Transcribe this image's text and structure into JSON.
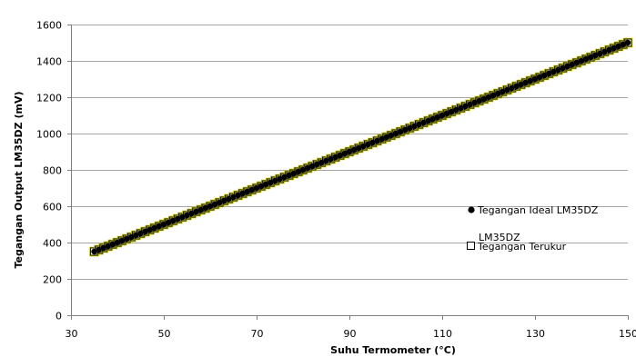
{
  "chart_data": {
    "type": "scatter",
    "title": "",
    "xlabel": "Suhu Termometer (°C)",
    "ylabel": "Tegangan Output LM35DZ (mV)",
    "xlim": [
      30,
      150
    ],
    "ylim": [
      0,
      1600
    ],
    "xticks": [
      30,
      50,
      70,
      90,
      110,
      130,
      150
    ],
    "yticks": [
      0,
      200,
      400,
      600,
      800,
      1000,
      1200,
      1400,
      1600
    ],
    "grid": "horizontal",
    "legend_position": "right",
    "series": [
      {
        "name": "Tegangan Ideal LM35DZ",
        "marker": "filled-circle",
        "color": "#000000",
        "x_range": [
          35,
          150
        ],
        "x_step": 1,
        "slope": 10,
        "intercept": 0
      },
      {
        "name": "Tegangan Terukur LM35DZ",
        "marker": "open-square",
        "color": "#000000",
        "edge_tint": "#c8c800",
        "x_range": [
          35,
          150
        ],
        "x_step": 1,
        "slope": 10,
        "intercept": 0
      }
    ],
    "legend": {
      "items": [
        {
          "label_lines": [
            "Tegangan Ideal LM35DZ"
          ]
        },
        {
          "label_lines": [
            "Tegangan Terukur",
            "LM35DZ"
          ]
        }
      ]
    }
  }
}
